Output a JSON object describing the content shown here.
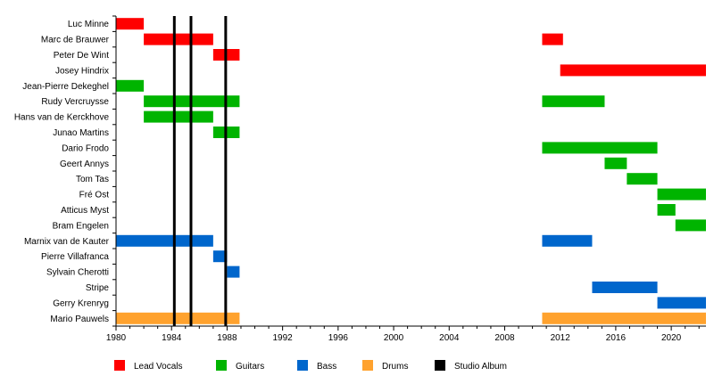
{
  "chart_data": {
    "type": "bar",
    "orientation": "horizontal-timeline",
    "title": "",
    "xlabel": "",
    "ylabel": "",
    "xlim": [
      1980,
      2022.5
    ],
    "xticks": [
      1980,
      1984,
      1988,
      1992,
      1996,
      2000,
      2004,
      2008,
      2012,
      2016,
      2020
    ],
    "grid": false,
    "legend_position": "bottom",
    "roles": [
      {
        "key": "vocals",
        "name": "Lead Vocals",
        "color": "#ff0000"
      },
      {
        "key": "guitars",
        "name": "Guitars",
        "color": "#00b400"
      },
      {
        "key": "bass",
        "name": "Bass",
        "color": "#0066cc"
      },
      {
        "key": "drums",
        "name": "Drums",
        "color": "#ffa22e"
      },
      {
        "key": "album",
        "name": "Studio Album",
        "color": "#000000"
      }
    ],
    "members": [
      {
        "name": "Luc Minne",
        "role": "vocals",
        "spans": [
          [
            1980,
            1982
          ]
        ]
      },
      {
        "name": "Marc de Brauwer",
        "role": "vocals",
        "spans": [
          [
            1982,
            1987
          ],
          [
            2010.7,
            2012.2
          ]
        ]
      },
      {
        "name": "Peter De Wint",
        "role": "vocals",
        "spans": [
          [
            1987,
            1988.9
          ]
        ]
      },
      {
        "name": "Josey Hindrix",
        "role": "vocals",
        "spans": [
          [
            2012,
            2022.5
          ]
        ]
      },
      {
        "name": "Jean-Pierre Dekeghel",
        "role": "guitars",
        "spans": [
          [
            1980,
            1982
          ]
        ]
      },
      {
        "name": "Rudy Vercruysse",
        "role": "guitars",
        "spans": [
          [
            1982,
            1988.9
          ],
          [
            2010.7,
            2015.2
          ]
        ]
      },
      {
        "name": "Hans van de Kerckhove",
        "role": "guitars",
        "spans": [
          [
            1982,
            1987
          ]
        ]
      },
      {
        "name": "Junao Martins",
        "role": "guitars",
        "spans": [
          [
            1987,
            1988.9
          ]
        ]
      },
      {
        "name": "Dario Frodo",
        "role": "guitars",
        "spans": [
          [
            2010.7,
            2019
          ]
        ]
      },
      {
        "name": "Geert Annys",
        "role": "guitars",
        "spans": [
          [
            2015.2,
            2016.8
          ]
        ]
      },
      {
        "name": "Tom Tas",
        "role": "guitars",
        "spans": [
          [
            2016.8,
            2019
          ]
        ]
      },
      {
        "name": "Fré Ost",
        "role": "guitars",
        "spans": [
          [
            2019,
            2022.5
          ]
        ]
      },
      {
        "name": "Atticus Myst",
        "role": "guitars",
        "spans": [
          [
            2019,
            2020.3
          ]
        ]
      },
      {
        "name": "Bram Engelen",
        "role": "guitars",
        "spans": [
          [
            2020.3,
            2022.5
          ]
        ]
      },
      {
        "name": "Marnix van de Kauter",
        "role": "bass",
        "spans": [
          [
            1980,
            1987
          ],
          [
            2010.7,
            2014.3
          ]
        ]
      },
      {
        "name": "Pierre Villafranca",
        "role": "bass",
        "spans": [
          [
            1987,
            1988
          ]
        ]
      },
      {
        "name": "Sylvain Cherotti",
        "role": "bass",
        "spans": [
          [
            1988,
            1988.9
          ]
        ]
      },
      {
        "name": "Stripe",
        "role": "bass",
        "spans": [
          [
            2014.3,
            2019
          ]
        ]
      },
      {
        "name": "Gerry Krenryg",
        "role": "bass",
        "spans": [
          [
            2019,
            2022.5
          ]
        ]
      },
      {
        "name": "Mario Pauwels",
        "role": "drums",
        "spans": [
          [
            1980,
            1988.9
          ],
          [
            2010.7,
            2022.5
          ]
        ]
      }
    ],
    "albums": [
      1984.2,
      1985.4,
      1987.9
    ]
  }
}
